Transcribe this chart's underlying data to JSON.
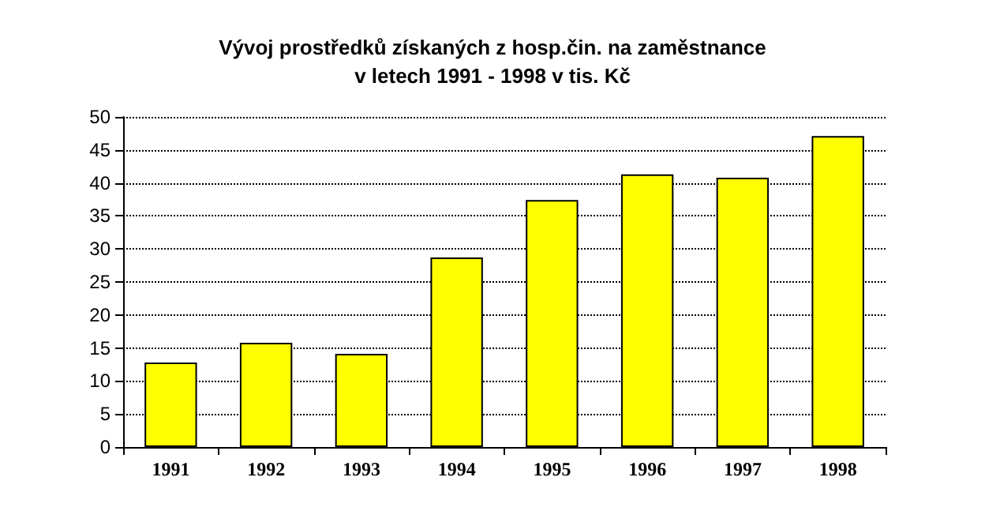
{
  "chart_data": {
    "type": "bar",
    "title": "Vývoj prostředků získaných z hosp.čin. na zaměstnance\nv letech 1991 - 1998 v tis. Kč",
    "categories": [
      "1991",
      "1992",
      "1993",
      "1994",
      "1995",
      "1996",
      "1997",
      "1998"
    ],
    "values": [
      12.8,
      15.8,
      14.1,
      28.7,
      37.4,
      41.3,
      40.8,
      47.1
    ],
    "color": "#ffff00",
    "ylim": [
      0,
      50
    ],
    "yticks": [
      0,
      5,
      10,
      15,
      20,
      25,
      30,
      35,
      40,
      45,
      50
    ],
    "grid": "y"
  }
}
